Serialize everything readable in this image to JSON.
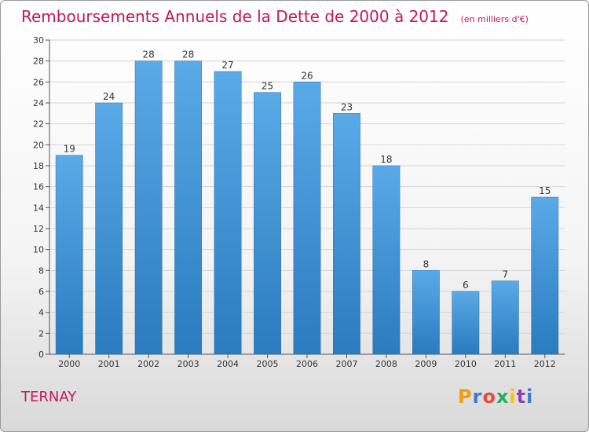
{
  "header": {
    "title": "Remboursements Annuels de la Dette de 2000 à 2012",
    "unit": "(en milliers d'€)"
  },
  "footer": {
    "commune": "TERNAY",
    "logo_letters": [
      "P",
      "r",
      "o",
      "x",
      "i",
      "t",
      "i"
    ],
    "logo_colors": [
      "#f39c12",
      "#3a7bd5",
      "#e74c3c",
      "#27ae60",
      "#f1c40f",
      "#8e44ad",
      "#3a7bd5"
    ]
  },
  "colors": {
    "bar_top": "#5aaae8",
    "bar_bottom": "#2a7bbf",
    "title": "#c2185b"
  },
  "chart_data": {
    "type": "bar",
    "title": "Remboursements Annuels de la Dette de 2000 à 2012",
    "subtitle": "(en milliers d'€)",
    "categories": [
      "2000",
      "2001",
      "2002",
      "2003",
      "2004",
      "2005",
      "2006",
      "2007",
      "2008",
      "2009",
      "2010",
      "2011",
      "2012"
    ],
    "values": [
      19,
      24,
      28,
      28,
      27,
      25,
      26,
      23,
      18,
      8,
      6,
      7,
      15
    ],
    "ylim": [
      0,
      30
    ],
    "yticks": [
      0,
      2,
      4,
      6,
      8,
      10,
      12,
      14,
      16,
      18,
      20,
      22,
      24,
      26,
      28,
      30
    ],
    "grid": true,
    "legend": "none"
  }
}
